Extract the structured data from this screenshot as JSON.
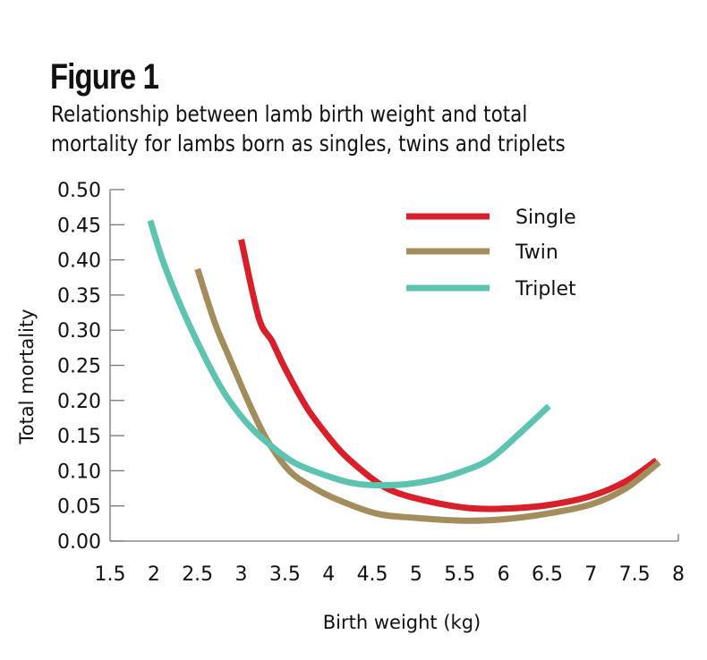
{
  "header": {
    "title": "Figure 1",
    "subtitle_line1": "Relationship between lamb birth weight and total",
    "subtitle_line2": "mortality for lambs born as singles, twins and triplets"
  },
  "chart_data": {
    "type": "line",
    "title": "Figure 1",
    "subtitle": "Relationship between lamb birth weight and total mortality for lambs born as singles, twins and triplets",
    "xlabel": "Birth weight (kg)",
    "ylabel": "Total mortality",
    "xlim": [
      1.5,
      8
    ],
    "ylim": [
      0,
      0.5
    ],
    "grid": false,
    "legend_position": "top-right",
    "x_ticks": [
      "1.5",
      "2",
      "2.5",
      "3",
      "3.5",
      "4",
      "4.5",
      "5",
      "5.5",
      "6",
      "6.5",
      "7",
      "7.5",
      "8"
    ],
    "y_ticks": [
      "0.00",
      "0.05",
      "0.10",
      "0.15",
      "0.20",
      "0.25",
      "0.30",
      "0.35",
      "0.40",
      "0.45",
      "0.50"
    ],
    "series": [
      {
        "name": "Single",
        "color": "#d91f2a",
        "x": [
          3.0,
          3.2,
          3.35,
          3.5,
          3.75,
          4.0,
          4.2,
          4.55,
          4.8,
          5.2,
          5.6,
          6.0,
          6.5,
          7.0,
          7.4,
          7.75
        ],
        "y": [
          0.429,
          0.318,
          0.285,
          0.246,
          0.19,
          0.148,
          0.12,
          0.084,
          0.068,
          0.055,
          0.047,
          0.046,
          0.051,
          0.064,
          0.085,
          0.115
        ]
      },
      {
        "name": "Twin",
        "color": "#a38d5c",
        "x": [
          2.5,
          2.7,
          2.85,
          3.1,
          3.3,
          3.55,
          3.8,
          4.1,
          4.55,
          5.0,
          5.55,
          6.0,
          6.5,
          7.0,
          7.4,
          7.78
        ],
        "y": [
          0.387,
          0.31,
          0.265,
          0.193,
          0.143,
          0.1,
          0.078,
          0.059,
          0.039,
          0.033,
          0.029,
          0.031,
          0.039,
          0.052,
          0.075,
          0.112
        ]
      },
      {
        "name": "Triplet",
        "color": "#5cc4b0",
        "x": [
          1.96,
          2.1,
          2.3,
          2.55,
          2.8,
          3.05,
          3.27,
          3.6,
          4.0,
          4.35,
          4.8,
          5.2,
          5.55,
          5.85,
          6.2,
          6.52
        ],
        "y": [
          0.456,
          0.4,
          0.337,
          0.27,
          0.212,
          0.17,
          0.143,
          0.112,
          0.092,
          0.081,
          0.08,
          0.087,
          0.1,
          0.117,
          0.155,
          0.192
        ]
      }
    ]
  }
}
